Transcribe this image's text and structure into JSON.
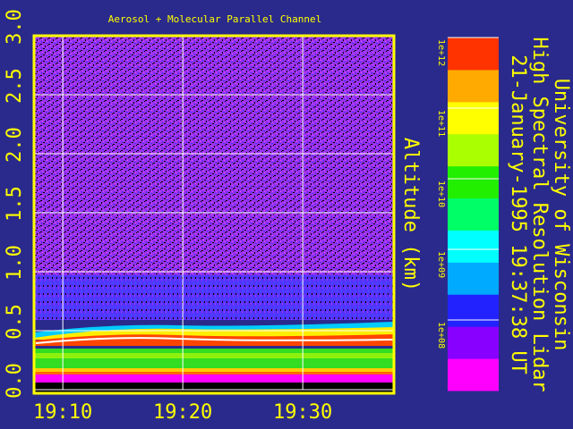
{
  "chart_data": {
    "type": "heatmap",
    "title": "Aerosol + Molecular Parallel Channel",
    "ylabel": "Altitude (km)",
    "side_text": [
      "University of Wisconsin",
      "High Spectral Resolution Lidar",
      "21-January-1995 19:37:38 UT"
    ],
    "xlim": [
      1147.6,
      1177.6
    ],
    "xticks": [
      {
        "value": 1150,
        "label": "19:10"
      },
      {
        "value": 1160,
        "label": "19:20"
      },
      {
        "value": 1170,
        "label": "19:30"
      }
    ],
    "ylim": [
      0,
      3
    ],
    "yticks": [
      {
        "value": 0,
        "label": "0.0"
      },
      0.5,
      {
        "value": 1,
        "label": "1.0"
      },
      1.5,
      {
        "value": 2,
        "label": "2.0"
      },
      2.5,
      {
        "value": 3,
        "label": "3.0"
      }
    ],
    "grid": true,
    "colorbar": {
      "scale": "log",
      "lim": [
        10000000,
        1000000000000
      ],
      "ticks": [
        {
          "value": 1000000000000,
          "label": "1e+12"
        },
        {
          "value": 100000000000,
          "label": "1e+11"
        },
        {
          "value": 10000000000,
          "label": "1e+10"
        },
        {
          "value": 1000000000,
          "label": "1e+09"
        },
        {
          "value": 100000000,
          "label": "1e+08"
        }
      ],
      "colors": [
        "#ff00ff",
        "#8800ff",
        "#2222ff",
        "#00aaff",
        "#00ffff",
        "#00ff66",
        "#22ee00",
        "#aaff00",
        "#ffff00",
        "#ffaa00",
        "#ff3300"
      ]
    }
  }
}
